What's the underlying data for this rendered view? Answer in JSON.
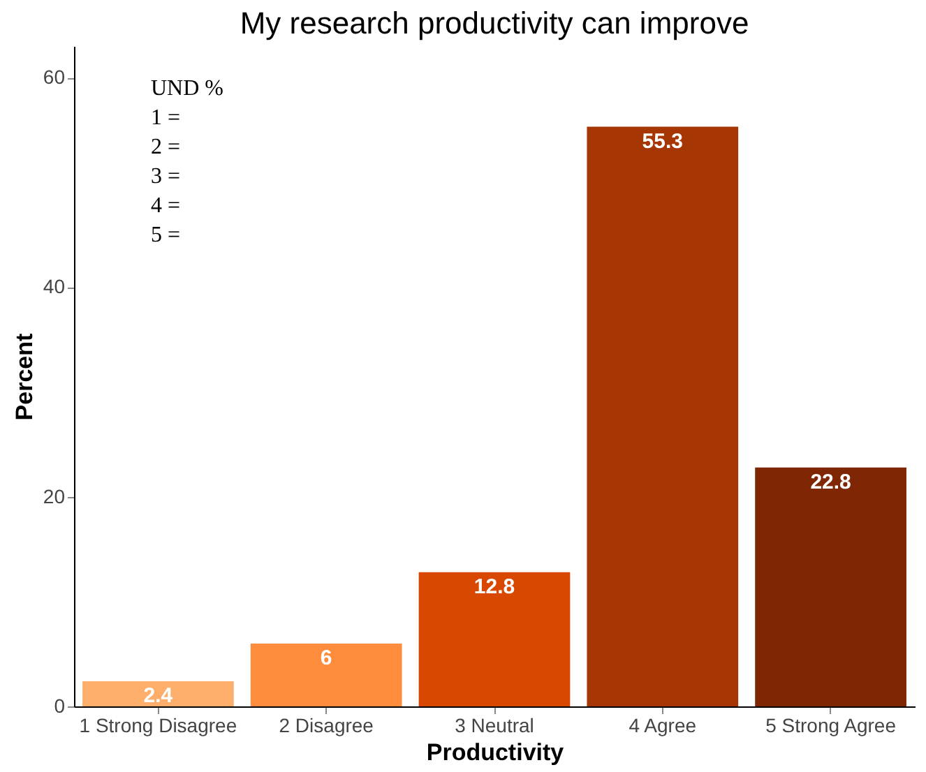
{
  "chart_data": {
    "type": "bar",
    "title": "My research productivity can improve",
    "xlabel": "Productivity",
    "ylabel": "Percent",
    "categories": [
      "1 Strong Disagree",
      "2 Disagree",
      "3 Neutral",
      "4 Agree",
      "5 Strong Agree"
    ],
    "values": [
      2.4,
      6,
      12.8,
      55.3,
      22.8
    ],
    "colors": [
      "#fdae6b",
      "#fd8d3c",
      "#d94801",
      "#a63603",
      "#7f2704"
    ],
    "ylim": [
      0,
      63
    ],
    "yticks": [
      0,
      20,
      40,
      60
    ],
    "grid": false,
    "data_labels": true,
    "annotations": [
      "UND %",
      "1 =",
      "2 =",
      "3 =",
      "4 =",
      "5 ="
    ]
  }
}
